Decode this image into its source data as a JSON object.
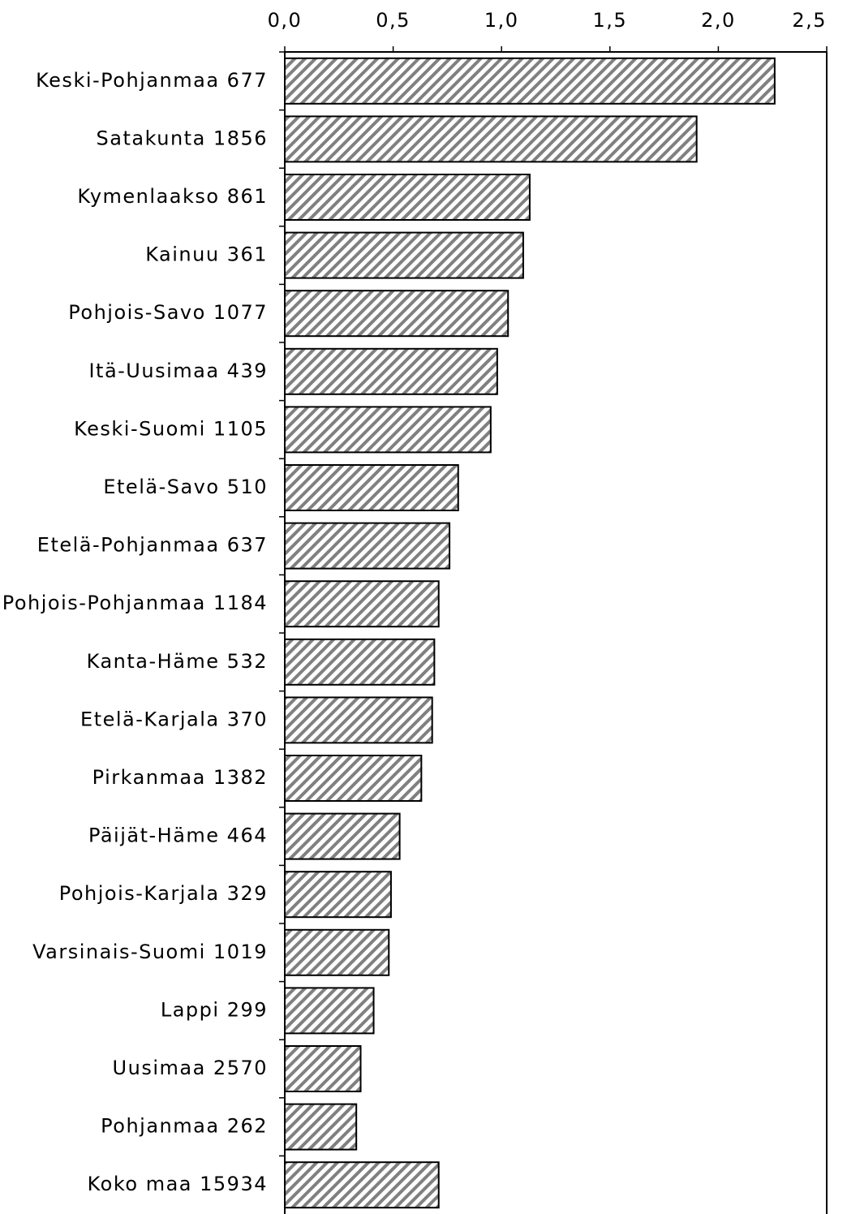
{
  "chart_data": {
    "type": "bar",
    "orientation": "horizontal",
    "categories": [
      "Keski-Pohjanmaa 677",
      "Satakunta 1856",
      "Kymenlaakso 861",
      "Kainuu 361",
      "Pohjois-Savo 1077",
      "Itä-Uusimaa 439",
      "Keski-Suomi 1105",
      "Etelä-Savo 510",
      "Etelä-Pohjanmaa 637",
      "Pohjois-Pohjanmaa 1184",
      "Kanta-Häme 532",
      "Etelä-Karjala 370",
      "Pirkanmaa 1382",
      "Päijät-Häme 464",
      "Pohjois-Karjala 329",
      "Varsinais-Suomi 1019",
      "Lappi 299",
      "Uusimaa 2570",
      "Pohjanmaa 262",
      "Koko maa 15934"
    ],
    "values": [
      2.26,
      1.9,
      1.13,
      1.1,
      1.03,
      0.98,
      0.95,
      0.8,
      0.76,
      0.71,
      0.69,
      0.68,
      0.63,
      0.53,
      0.49,
      0.48,
      0.41,
      0.35,
      0.33,
      0.71
    ],
    "color": "#808080",
    "xlim": [
      0,
      2.5
    ],
    "xticks": [
      {
        "value": 0,
        "label": "0,0"
      },
      {
        "value": 0.5,
        "label": "0,5"
      },
      {
        "value": 1,
        "label": "1,0"
      },
      {
        "value": 1.5,
        "label": "1,5"
      },
      {
        "value": 2,
        "label": "2,0"
      },
      {
        "value": 2.5,
        "label": "2,5"
      }
    ]
  }
}
